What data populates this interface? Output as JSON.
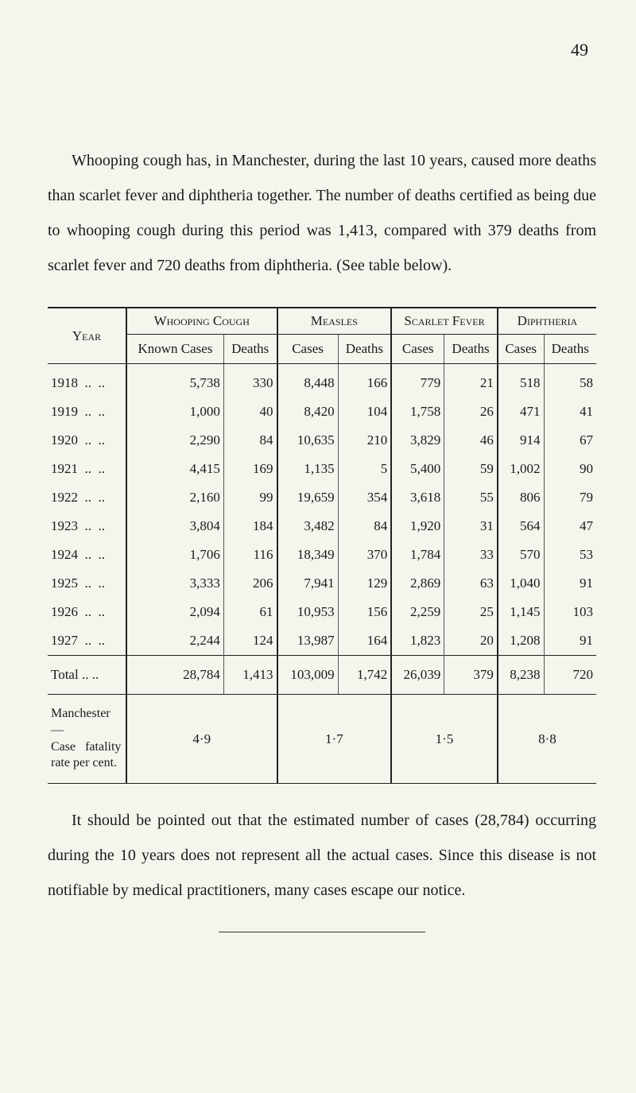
{
  "page_number": "49",
  "intro_text": "Whooping cough has, in Manchester, during the last 10 years, caused more deaths than scarlet fever and diphtheria together. The number of deaths certified as being due to whooping cough during this period was 1,413, compared with 379 deaths from scarlet fever and 720 deaths from diphtheria. (See table below).",
  "table": {
    "headers": {
      "year": "Year",
      "whooping": "Whooping Cough",
      "measles": "Measles",
      "scarlet": "Scarlet Fever",
      "diphtheria": "Diphtheria",
      "known_cases": "Known Cases",
      "cases": "Cases",
      "deaths": "Deaths"
    },
    "rows": [
      {
        "year": "1918",
        "wc_cases": "5,738",
        "wc_deaths": "330",
        "m_cases": "8,448",
        "m_deaths": "166",
        "sf_cases": "779",
        "sf_deaths": "21",
        "d_cases": "518",
        "d_deaths": "58"
      },
      {
        "year": "1919",
        "wc_cases": "1,000",
        "wc_deaths": "40",
        "m_cases": "8,420",
        "m_deaths": "104",
        "sf_cases": "1,758",
        "sf_deaths": "26",
        "d_cases": "471",
        "d_deaths": "41"
      },
      {
        "year": "1920",
        "wc_cases": "2,290",
        "wc_deaths": "84",
        "m_cases": "10,635",
        "m_deaths": "210",
        "sf_cases": "3,829",
        "sf_deaths": "46",
        "d_cases": "914",
        "d_deaths": "67"
      },
      {
        "year": "1921",
        "wc_cases": "4,415",
        "wc_deaths": "169",
        "m_cases": "1,135",
        "m_deaths": "5",
        "sf_cases": "5,400",
        "sf_deaths": "59",
        "d_cases": "1,002",
        "d_deaths": "90"
      },
      {
        "year": "1922",
        "wc_cases": "2,160",
        "wc_deaths": "99",
        "m_cases": "19,659",
        "m_deaths": "354",
        "sf_cases": "3,618",
        "sf_deaths": "55",
        "d_cases": "806",
        "d_deaths": "79"
      },
      {
        "year": "1923",
        "wc_cases": "3,804",
        "wc_deaths": "184",
        "m_cases": "3,482",
        "m_deaths": "84",
        "sf_cases": "1,920",
        "sf_deaths": "31",
        "d_cases": "564",
        "d_deaths": "47"
      },
      {
        "year": "1924",
        "wc_cases": "1,706",
        "wc_deaths": "116",
        "m_cases": "18,349",
        "m_deaths": "370",
        "sf_cases": "1,784",
        "sf_deaths": "33",
        "d_cases": "570",
        "d_deaths": "53"
      },
      {
        "year": "1925",
        "wc_cases": "3,333",
        "wc_deaths": "206",
        "m_cases": "7,941",
        "m_deaths": "129",
        "sf_cases": "2,869",
        "sf_deaths": "63",
        "d_cases": "1,040",
        "d_deaths": "91"
      },
      {
        "year": "1926",
        "wc_cases": "2,094",
        "wc_deaths": "61",
        "m_cases": "10,953",
        "m_deaths": "156",
        "sf_cases": "2,259",
        "sf_deaths": "25",
        "d_cases": "1,145",
        "d_deaths": "103"
      },
      {
        "year": "1927",
        "wc_cases": "2,244",
        "wc_deaths": "124",
        "m_cases": "13,987",
        "m_deaths": "164",
        "sf_cases": "1,823",
        "sf_deaths": "20",
        "d_cases": "1,208",
        "d_deaths": "91"
      }
    ],
    "total": {
      "label": "Total ..  ..",
      "wc_cases": "28,784",
      "wc_deaths": "1,413",
      "m_cases": "103,009",
      "m_deaths": "1,742",
      "sf_cases": "26,039",
      "sf_deaths": "379",
      "d_cases": "8,238",
      "d_deaths": "720"
    },
    "fatality": {
      "label": "Manchester—\nCase fatality\nrate per cent.",
      "wc": "4·9",
      "m": "1·7",
      "sf": "1·5",
      "d": "8·8"
    }
  },
  "outro_text": "It should be pointed out that the estimated number of cases (28,784) occurring during the 10 years does not represent all the actual cases. Since this disease is not notifiable by medical practitioners, many cases escape our notice."
}
